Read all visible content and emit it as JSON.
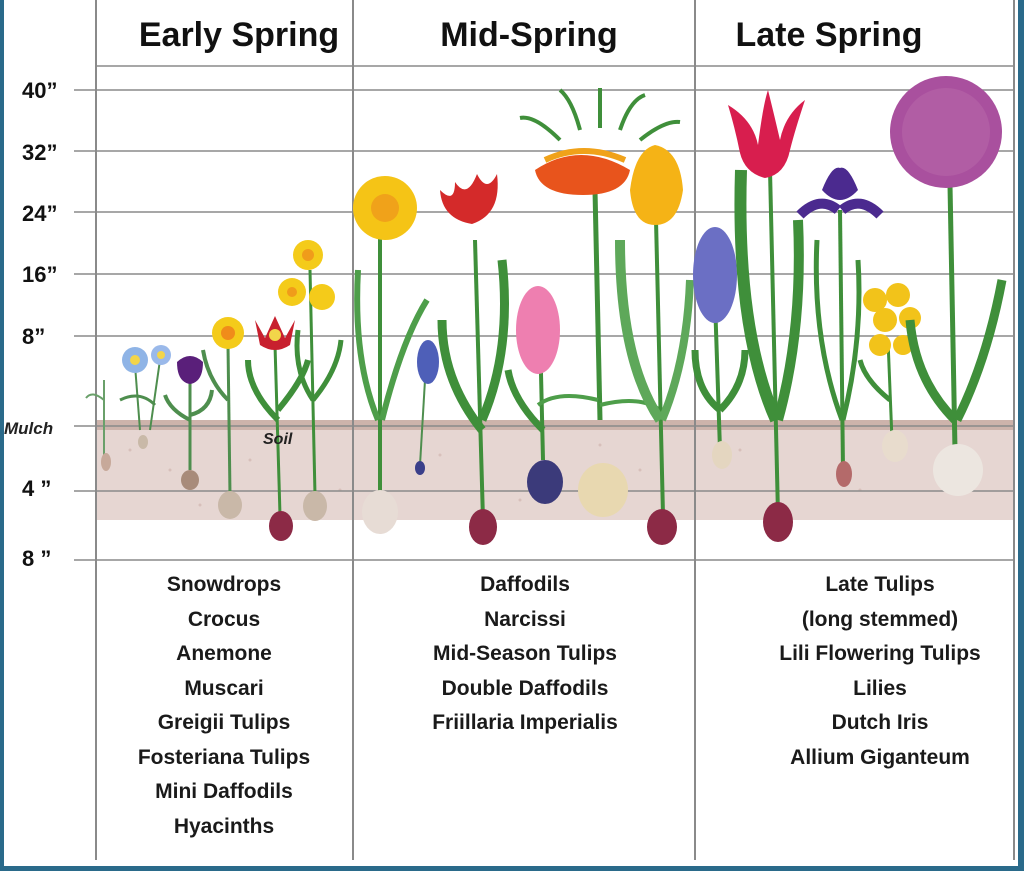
{
  "seasons": {
    "early": "Early Spring",
    "mid": "Mid-Spring",
    "late": "Late Spring"
  },
  "height_labels": {
    "h40": "40”",
    "h32": "32”",
    "h24": "24”",
    "h16": "16”",
    "h8": "8”"
  },
  "ground": {
    "mulch": "Mulch",
    "soil": "Soil"
  },
  "depth_labels": {
    "d4": "4 ”",
    "d8": "8 ”"
  },
  "lists": {
    "early": [
      "Snowdrops",
      "Crocus",
      "Anemone",
      "Muscari",
      "Greigii Tulips",
      "Fosteriana Tulips",
      "Mini Daffodils",
      "Hyacinths"
    ],
    "mid": [
      "Daffodils",
      "Narcissi",
      "Mid-Season Tulips",
      "Double Daffodils",
      "Friillaria Imperialis"
    ],
    "late": [
      "Late Tulips",
      "(long stemmed)",
      "Lili Flowering Tulips",
      "Lilies",
      "Dutch Iris",
      "Allium Giganteum"
    ]
  },
  "colors": {
    "tulip_red": "#d42a2a",
    "daffodil_yellow": "#f5c416",
    "hyacinth_pink": "#ee7fb0",
    "hyacinth_blue": "#6b6fc4",
    "iris_purple": "#4b2a8f",
    "allium_purple": "#a9509e",
    "soil": "#d9c3bd",
    "stem_green": "#3f8f3a"
  }
}
